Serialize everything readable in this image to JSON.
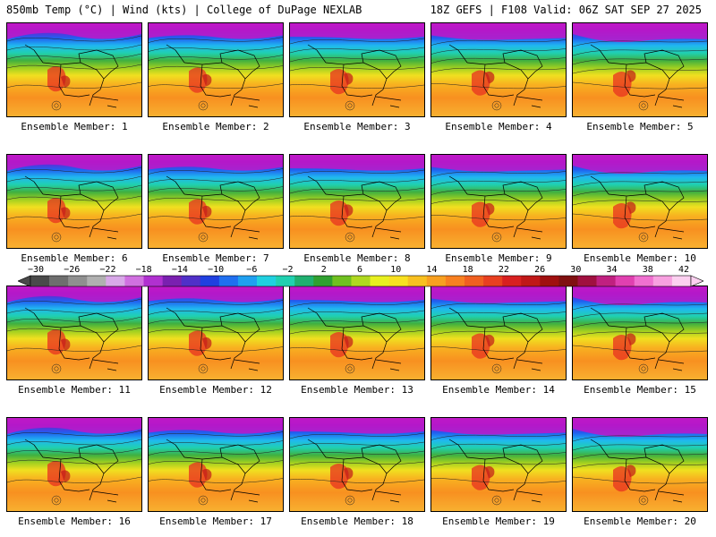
{
  "header": {
    "left": "850mb Temp (°C) | Wind (kts) | College of DuPage NEXLAB",
    "right": "18Z GEFS | F108 Valid: 06Z SAT SEP 27 2025"
  },
  "panels": [
    {
      "label": "Ensemble Member: 1"
    },
    {
      "label": "Ensemble Member: 2"
    },
    {
      "label": "Ensemble Member: 3"
    },
    {
      "label": "Ensemble Member: 4"
    },
    {
      "label": "Ensemble Member: 5"
    },
    {
      "label": "Ensemble Member: 6"
    },
    {
      "label": "Ensemble Member: 7"
    },
    {
      "label": "Ensemble Member: 8"
    },
    {
      "label": "Ensemble Member: 9"
    },
    {
      "label": "Ensemble Member: 10"
    },
    {
      "label": "Ensemble Member: 11"
    },
    {
      "label": "Ensemble Member: 12"
    },
    {
      "label": "Ensemble Member: 13"
    },
    {
      "label": "Ensemble Member: 14"
    },
    {
      "label": "Ensemble Member: 15"
    },
    {
      "label": "Ensemble Member: 16"
    },
    {
      "label": "Ensemble Member: 17"
    },
    {
      "label": "Ensemble Member: 18"
    },
    {
      "label": "Ensemble Member: 19"
    },
    {
      "label": "Ensemble Member: 20"
    }
  ],
  "colorbar": {
    "ticks": [
      "−30",
      "−26",
      "−22",
      "−18",
      "−14",
      "−10",
      "−6",
      "−2",
      "2",
      "6",
      "10",
      "14",
      "18",
      "22",
      "26",
      "30",
      "34",
      "38",
      "42"
    ],
    "colors": [
      "#4a4a4a",
      "#6e6e6e",
      "#8f8f8f",
      "#b0b0b0",
      "#d8a8e8",
      "#d070e0",
      "#b030d0",
      "#7a20b0",
      "#5030c8",
      "#2040e0",
      "#2070f0",
      "#20a0f0",
      "#20d0e0",
      "#20d0b0",
      "#20b070",
      "#30a030",
      "#70c020",
      "#b0d820",
      "#e8f020",
      "#f8e020",
      "#f8c020",
      "#f8a020",
      "#f88020",
      "#f06020",
      "#e84020",
      "#d82020",
      "#c01818",
      "#a01010",
      "#801010",
      "#a01040",
      "#c02080",
      "#e040b0",
      "#f070d0",
      "#f8a0e0",
      "#fcd0f0"
    ]
  }
}
